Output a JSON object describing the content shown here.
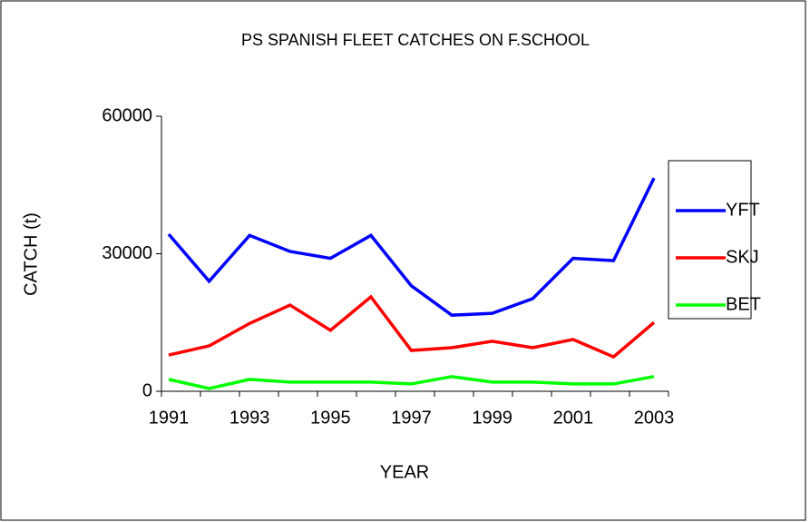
{
  "chart_data": {
    "type": "line",
    "title": "PS SPANISH FLEET CATCHES ON F.SCHOOL",
    "x_label": "YEAR",
    "y_label": "CATCH (t)",
    "categories": [
      "1991",
      null,
      "1993",
      null,
      "1995",
      null,
      "1997",
      null,
      "1999",
      null,
      "2001",
      null,
      "2003"
    ],
    "series": [
      {
        "name": "YFT",
        "color": "#0000ff",
        "values": [
          34250,
          24000,
          34000,
          30500,
          29000,
          34000,
          23000,
          16600,
          17000,
          20200,
          29000,
          28500,
          46500
        ]
      },
      {
        "name": "SKJ",
        "color": "#ff0000",
        "values": [
          7900,
          9900,
          14800,
          18800,
          13300,
          20600,
          8900,
          9500,
          10900,
          9500,
          11300,
          7500,
          15000
        ]
      },
      {
        "name": "BET",
        "color": "#00ff00",
        "values": [
          2600,
          600,
          2600,
          2000,
          2000,
          2000,
          1600,
          3200,
          2000,
          2000,
          1600,
          1600,
          3200
        ]
      }
    ],
    "ylim": [
      0,
      60000
    ],
    "yticks": [
      0,
      30000,
      60000
    ],
    "legend": "right"
  }
}
